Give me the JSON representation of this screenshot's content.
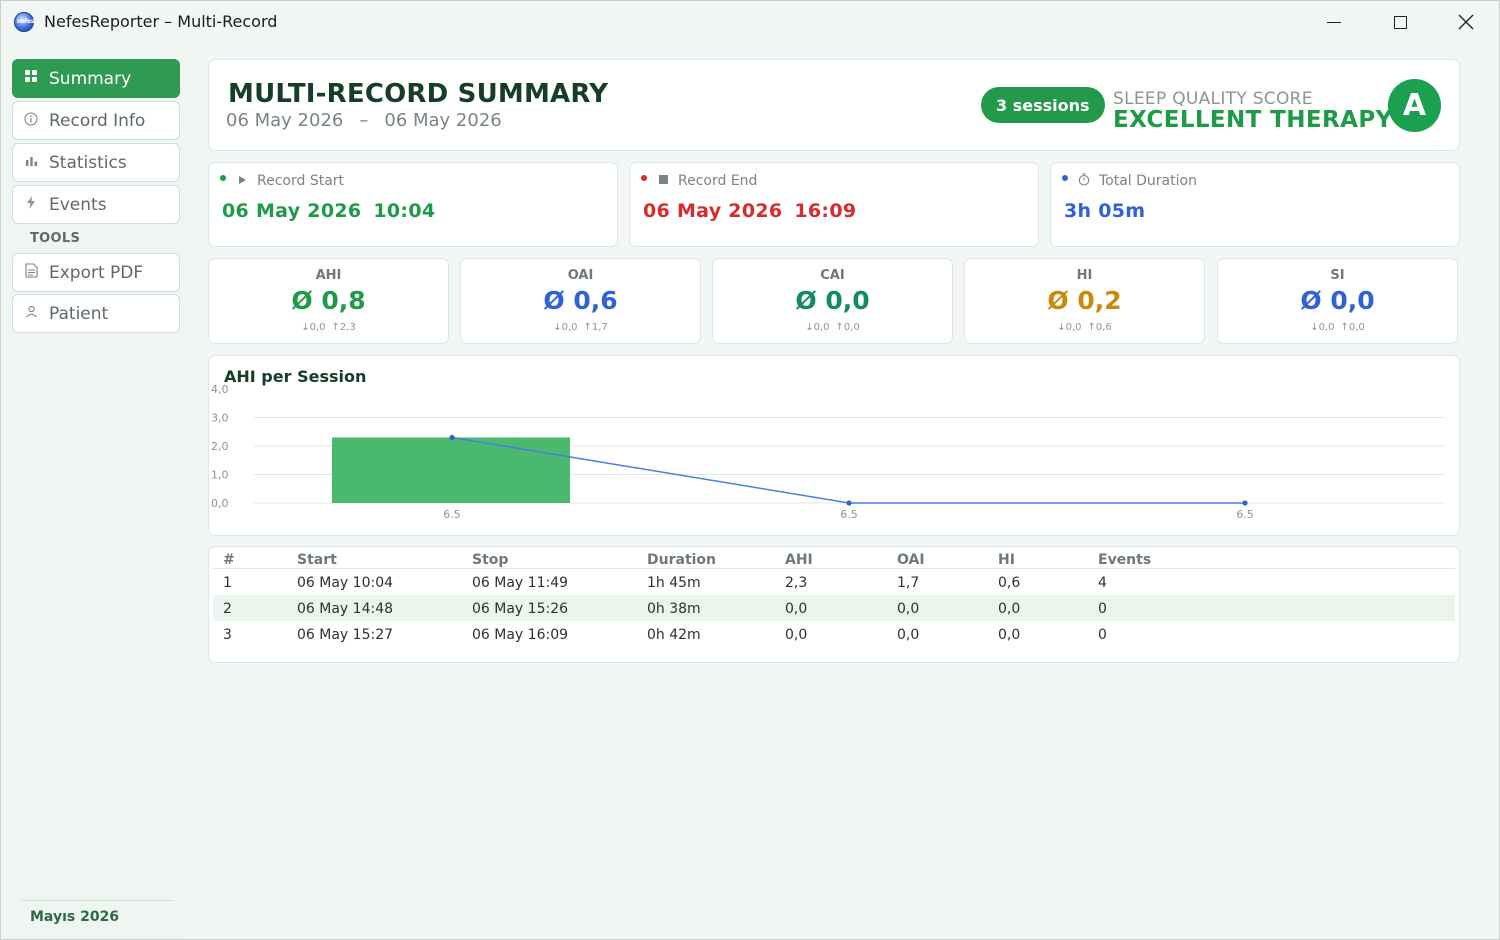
{
  "window": {
    "title": "NefesReporter – Multi-Record",
    "icon_text": "nefes"
  },
  "sidebar": {
    "items": [
      {
        "label": "Summary",
        "icon": "grid-icon",
        "active": true
      },
      {
        "label": "Record Info",
        "icon": "info-icon",
        "active": false
      },
      {
        "label": "Statistics",
        "icon": "bar-chart-icon",
        "active": false
      },
      {
        "label": "Events",
        "icon": "lightning-icon",
        "active": false
      }
    ],
    "tools_label": "TOOLS",
    "tools": [
      {
        "label": "Export PDF",
        "icon": "document-icon"
      },
      {
        "label": "Patient",
        "icon": "user-icon"
      }
    ],
    "footer": "Mayıs 2026"
  },
  "header": {
    "title": "MULTI-RECORD SUMMARY",
    "date_from": "06 May 2026",
    "date_sep": "–",
    "date_to": "06 May 2026",
    "sessions": "3 sessions",
    "score_label": "SLEEP QUALITY SCORE",
    "score_value": "EXCELLENT THERAPY",
    "grade": "A"
  },
  "info_cards": [
    {
      "label": "Record Start",
      "date": "06 May 2026",
      "time": "10:04",
      "color": "#1f9a48",
      "icon": "play-icon"
    },
    {
      "label": "Record End",
      "date": "06 May 2026",
      "time": "16:09",
      "color": "#d92b2b",
      "icon": "stop-icon"
    },
    {
      "label": "Total Duration",
      "value": "3h 05m",
      "color": "#2f62d6",
      "icon": "stopwatch-icon"
    }
  ],
  "metrics": [
    {
      "label": "AHI",
      "value": "Ø 0,8",
      "min": "↓0,0",
      "max": "↑2,3",
      "color": "#1f9a48"
    },
    {
      "label": "OAI",
      "value": "Ø 0,6",
      "min": "↓0,0",
      "max": "↑1,7",
      "color": "#2f62d6"
    },
    {
      "label": "CAI",
      "value": "Ø 0,0",
      "min": "↓0,0",
      "max": "↑0,0",
      "color": "#138a66"
    },
    {
      "label": "HI",
      "value": "Ø 0,2",
      "min": "↓0,0",
      "max": "↑0,6",
      "color": "#c98a0c"
    },
    {
      "label": "SI",
      "value": "Ø 0,0",
      "min": "↓0,0",
      "max": "↑0,0",
      "color": "#2f62d6"
    }
  ],
  "chart_data": {
    "type": "bar",
    "title": "AHI per Session",
    "categories": [
      "6.5",
      "6.5",
      "6.5"
    ],
    "series": [
      {
        "values": [
          2.3,
          0.0,
          0.0
        ],
        "color": "#4bb86f"
      },
      {
        "values": [
          2.3,
          0.0,
          0.0
        ],
        "color": "#4a7fe0",
        "type": "line"
      }
    ],
    "yticks": [
      "4,0",
      "3,0",
      "2,0",
      "1,0",
      "0,0"
    ],
    "ylim": [
      0,
      4
    ],
    "grid": true
  },
  "table": {
    "headers": [
      "#",
      "Start",
      "Stop",
      "Duration",
      "AHI",
      "OAI",
      "HI",
      "Events"
    ],
    "rows": [
      [
        "1",
        "06 May  10:04",
        "06 May  11:49",
        "1h 45m",
        "2,3",
        "1,7",
        "0,6",
        "4"
      ],
      [
        "2",
        "06 May  14:48",
        "06 May  15:26",
        "0h 38m",
        "0,0",
        "0,0",
        "0,0",
        "0"
      ],
      [
        "3",
        "06 May  15:27",
        "06 May  16:09",
        "0h 42m",
        "0,0",
        "0,0",
        "0,0",
        "0"
      ]
    ]
  }
}
